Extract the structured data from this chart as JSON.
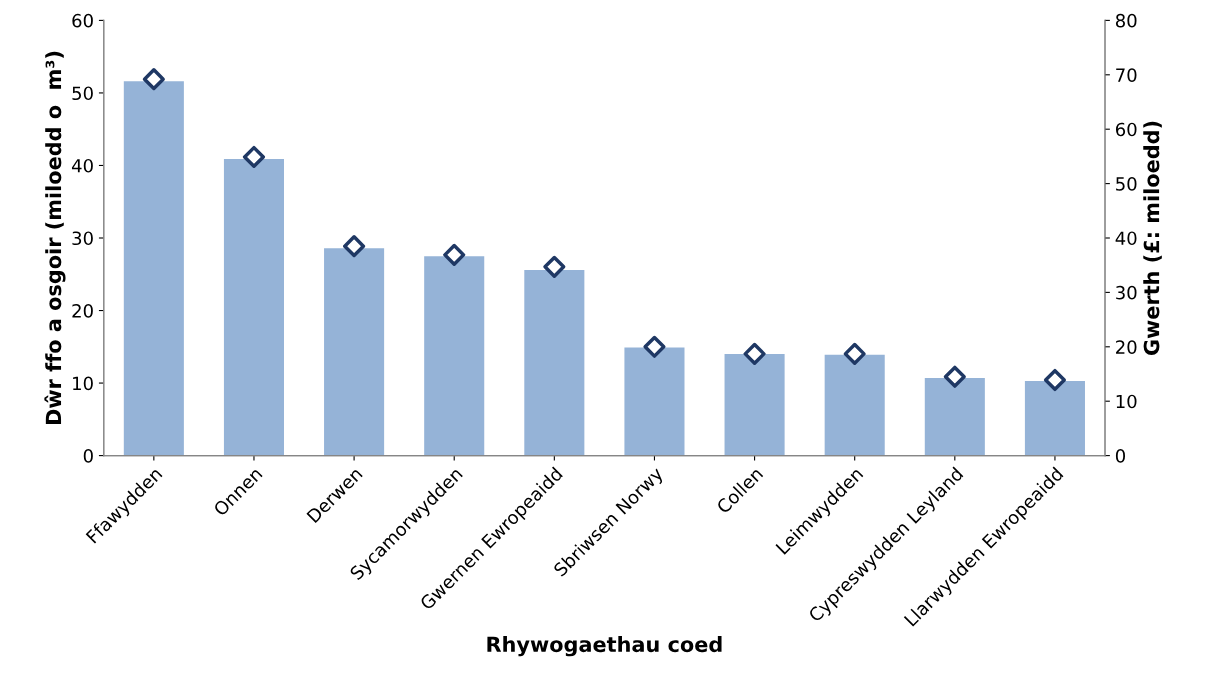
{
  "chart_data": {
    "type": "bar",
    "xlabel": "Rhywogaethau coed",
    "ylabel": "Dŵr ffo a osgoir (miloedd o  m³)",
    "y2label": "Gwerth (£: miloedd)",
    "categories": [
      "Ffawydden",
      "Onnen",
      "Derwen",
      "Sycamorwydden",
      "Gwernen Ewropeaidd",
      "Sbriwsen Norwy",
      "Collen",
      "Leimwydden",
      "Cypreswydden Leyland",
      "Llarwydden Ewropeaidd"
    ],
    "series": [
      {
        "color": "#95b3d7",
        "values": [
          51.6,
          40.9,
          28.6,
          27.5,
          25.6,
          14.9,
          14.0,
          13.9,
          10.7,
          10.3
        ]
      },
      {
        "type": "scatter",
        "axis": "y2",
        "marker": "diamond",
        "color": "#1f3864",
        "values": [
          69.2,
          54.9,
          38.5,
          36.9,
          34.7,
          20.0,
          18.7,
          18.7,
          14.5,
          13.9
        ]
      }
    ],
    "ylim": [
      0,
      60
    ],
    "yticks": [
      0,
      10,
      20,
      30,
      40,
      50,
      60
    ],
    "y2lim": [
      0,
      80
    ],
    "y2ticks": [
      0,
      10,
      20,
      30,
      40,
      50,
      60,
      70,
      80
    ],
    "grid": false,
    "legend": false
  }
}
